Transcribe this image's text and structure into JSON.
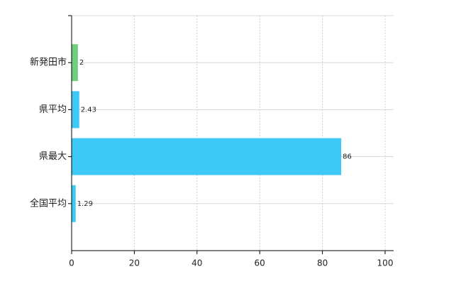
{
  "chart_data": {
    "type": "bar",
    "orientation": "horizontal",
    "categories": [
      "新発田市",
      "県平均",
      "県最大",
      "全国平均"
    ],
    "values": [
      2,
      2.43,
      86,
      1.29
    ],
    "colors": [
      "#6fcf7f",
      "#3ec8f5",
      "#3ec8f5",
      "#3ec8f5"
    ],
    "xlim": [
      0,
      100
    ],
    "xticks": [
      0,
      20,
      40,
      60,
      80,
      100
    ],
    "grid": true
  }
}
